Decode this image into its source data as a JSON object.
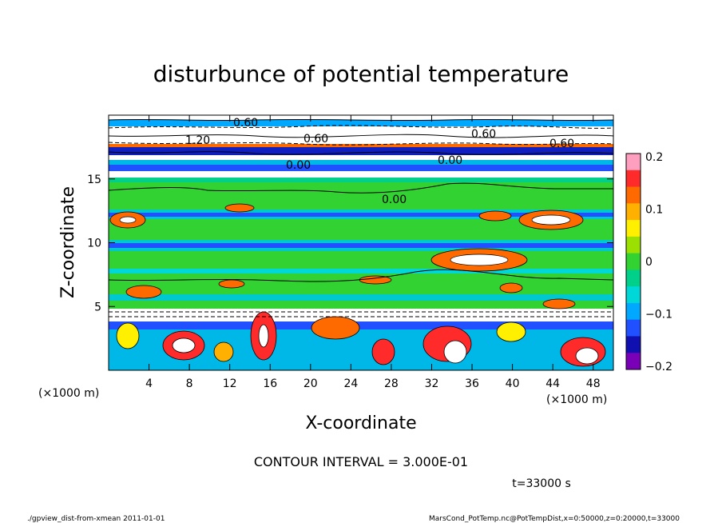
{
  "chart_data": {
    "type": "heatmap",
    "title": "disturbunce of potential temperature",
    "xlabel": "X-coordinate",
    "ylabel": "Z-coordinate",
    "x_unit": "(×1000 m)",
    "z_unit": "(×1000 m)",
    "xlim": [
      0,
      50
    ],
    "ylim": [
      0,
      20
    ],
    "xticks": [
      "4",
      "8",
      "12",
      "16",
      "20",
      "24",
      "28",
      "32",
      "36",
      "40",
      "44",
      "48"
    ],
    "yticks": [
      "5",
      "10",
      "15"
    ],
    "colorbar": {
      "range": [
        -0.2,
        0.2
      ],
      "ticks": [
        "0.2",
        "0.1",
        "0",
        "−0.1",
        "−0.2"
      ],
      "colors": [
        "#ff9fbf",
        "#ff2a2a",
        "#ff6a00",
        "#ffb000",
        "#fff000",
        "#9be000",
        "#32d232",
        "#00d08a",
        "#00d8d8",
        "#00a8ff",
        "#2050ff",
        "#1010b0",
        "#7a00b8"
      ]
    },
    "contour_labels": [
      "0.60",
      "1.20",
      "0.60",
      "0.60",
      "0.60",
      "0.00",
      "0.00",
      "0.00"
    ],
    "contour_interval": "CONTOUR INTERVAL = 3.000E-01",
    "time": "t=33000 s"
  },
  "footer": {
    "left": "./gpview_dist-from-xmean 2011-01-01",
    "right": "MarsCond_PotTemp.nc@PotTempDist,x=0:50000,z=0:20000,t=33000"
  }
}
